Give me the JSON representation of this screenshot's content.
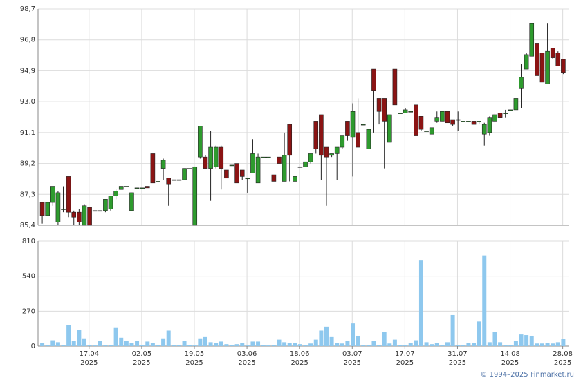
{
  "chart_data": [
    {
      "type": "candlestick",
      "up_color": "#2e9b2e",
      "down_color": "#8b1414",
      "ylim": [
        85.4,
        98.7
      ],
      "yticks": [
        {
          "value": 85.4,
          "label": "85,4"
        },
        {
          "value": 87.3,
          "label": "87,3"
        },
        {
          "value": 89.2,
          "label": "89,2"
        },
        {
          "value": 91.1,
          "label": "91,1"
        },
        {
          "value": 93.0,
          "label": "93,0"
        },
        {
          "value": 94.9,
          "label": "94,9"
        },
        {
          "value": 96.8,
          "label": "96,8"
        },
        {
          "value": 98.7,
          "label": "98,7"
        }
      ],
      "grid": true,
      "open": [
        86.8,
        86.0,
        86.8,
        85.6,
        86.4,
        88.4,
        86.2,
        86.2,
        85.4,
        86.5,
        86.3,
        86.3,
        86.3,
        86.4,
        87.2,
        87.6,
        87.8,
        86.3,
        87.7,
        87.7,
        87.8,
        89.8,
        88.1,
        88.9,
        88.3,
        88.2,
        88.2,
        88.2,
        88.9,
        85.4,
        89.6,
        89.6,
        88.9,
        89.0,
        90.2,
        88.8,
        89.1,
        89.2,
        88.8,
        88.3,
        88.6,
        88.0,
        89.6,
        89.6,
        88.5,
        89.6,
        88.1,
        91.6,
        88.1,
        89.0,
        89.0,
        89.3,
        91.8,
        92.2,
        90.2,
        89.7,
        89.8,
        90.2,
        91.8,
        90.8,
        91.1,
        91.6,
        90.1,
        95.0,
        93.2,
        93.2,
        90.5,
        95.0,
        92.3,
        92.3,
        92.4,
        92.8,
        92.1,
        91.2,
        91.0,
        91.8,
        91.8,
        92.4,
        91.9,
        91.9,
        91.8,
        91.8,
        91.8,
        91.8,
        91.0,
        91.1,
        91.8,
        92.3,
        92.3,
        92.5,
        92.5,
        93.8,
        95.0,
        95.8,
        96.6,
        96.0,
        94.1,
        96.3,
        96.0,
        95.6
      ],
      "high": [
        86.8,
        86.8,
        87.8,
        87.5,
        87.8,
        88.4,
        86.3,
        86.4,
        86.7,
        86.5,
        86.3,
        86.3,
        87.0,
        87.2,
        87.6,
        87.8,
        87.8,
        87.4,
        87.7,
        87.7,
        87.8,
        89.8,
        88.1,
        89.5,
        88.3,
        88.2,
        88.2,
        88.9,
        88.9,
        89.0,
        91.5,
        89.7,
        91.2,
        90.3,
        90.3,
        88.8,
        89.1,
        89.2,
        88.8,
        88.3,
        90.7,
        89.8,
        89.6,
        89.6,
        88.5,
        89.6,
        91.1,
        91.6,
        88.4,
        89.0,
        89.3,
        89.8,
        91.8,
        92.2,
        90.2,
        89.8,
        90.2,
        90.9,
        91.8,
        92.9,
        93.2,
        91.6,
        91.3,
        95.0,
        93.2,
        93.2,
        92.2,
        95.0,
        92.3,
        92.6,
        92.4,
        92.8,
        92.1,
        91.2,
        91.4,
        92.4,
        92.4,
        92.4,
        91.9,
        92.4,
        91.8,
        91.8,
        91.8,
        91.8,
        91.7,
        92.1,
        92.3,
        92.3,
        92.5,
        92.5,
        93.2,
        95.3,
        96.0,
        97.8,
        96.6,
        96.0,
        97.8,
        96.3,
        96.1,
        95.6
      ],
      "low": [
        85.5,
        86.0,
        86.6,
        85.4,
        86.2,
        85.9,
        85.4,
        85.4,
        85.4,
        85.4,
        86.3,
        86.3,
        86.2,
        86.3,
        87.0,
        87.6,
        87.8,
        86.3,
        87.7,
        87.7,
        87.7,
        88.0,
        88.1,
        88.2,
        86.6,
        88.2,
        88.2,
        88.2,
        88.9,
        85.4,
        89.5,
        88.9,
        86.9,
        88.9,
        87.6,
        88.3,
        89.1,
        88.0,
        88.2,
        87.4,
        88.6,
        88.0,
        89.6,
        89.6,
        88.1,
        89.2,
        88.1,
        88.1,
        88.1,
        89.0,
        89.0,
        89.2,
        89.8,
        88.2,
        86.6,
        89.6,
        88.2,
        90.1,
        90.6,
        88.4,
        90.2,
        91.6,
        90.1,
        91.1,
        91.6,
        88.9,
        90.5,
        92.8,
        92.3,
        92.3,
        92.4,
        90.9,
        91.2,
        91.2,
        91.0,
        91.7,
        91.8,
        91.7,
        91.5,
        91.2,
        91.8,
        91.8,
        91.6,
        91.6,
        90.3,
        90.9,
        91.7,
        92.0,
        92.0,
        92.5,
        92.5,
        92.6,
        95.0,
        95.8,
        94.6,
        94.2,
        94.1,
        95.6,
        95.2,
        94.7
      ],
      "close": [
        86.0,
        86.8,
        87.8,
        87.4,
        86.4,
        86.2,
        85.9,
        85.6,
        86.6,
        85.4,
        86.3,
        86.3,
        87.0,
        87.2,
        87.5,
        87.8,
        87.8,
        87.4,
        87.7,
        87.7,
        87.7,
        88.0,
        88.1,
        89.4,
        87.9,
        88.2,
        88.2,
        88.9,
        88.9,
        89.0,
        91.5,
        88.9,
        90.2,
        90.2,
        88.9,
        88.3,
        89.1,
        88.0,
        88.4,
        88.3,
        89.8,
        89.6,
        89.6,
        89.6,
        88.1,
        89.2,
        89.7,
        89.7,
        88.4,
        89.0,
        89.3,
        89.8,
        90.1,
        89.7,
        89.6,
        89.8,
        90.2,
        90.9,
        90.9,
        92.4,
        90.2,
        91.6,
        91.3,
        93.7,
        92.4,
        91.8,
        92.2,
        92.8,
        92.3,
        92.5,
        92.4,
        90.9,
        91.3,
        91.2,
        91.4,
        92.0,
        92.4,
        91.7,
        91.6,
        91.9,
        91.8,
        91.8,
        91.6,
        91.8,
        91.6,
        92.0,
        92.2,
        92.0,
        92.3,
        92.5,
        93.2,
        94.5,
        95.9,
        97.8,
        94.6,
        94.2,
        96.1,
        95.7,
        95.2,
        94.8
      ]
    },
    {
      "type": "bar",
      "color": "#8ec8ee",
      "values": [
        25,
        10,
        45,
        30,
        10,
        165,
        40,
        125,
        60,
        10,
        5,
        40,
        10,
        10,
        140,
        65,
        40,
        25,
        40,
        10,
        35,
        25,
        10,
        60,
        120,
        10,
        10,
        40,
        10,
        5,
        60,
        70,
        30,
        25,
        35,
        15,
        10,
        15,
        25,
        5,
        35,
        35,
        10,
        5,
        10,
        50,
        30,
        25,
        25,
        15,
        10,
        20,
        50,
        120,
        150,
        70,
        25,
        20,
        40,
        175,
        80,
        10,
        10,
        40,
        10,
        110,
        20,
        50,
        10,
        10,
        25,
        45,
        660,
        30,
        15,
        25,
        10,
        30,
        240,
        10,
        10,
        25,
        25,
        190,
        700,
        30,
        110,
        30,
        10,
        10,
        40,
        90,
        85,
        80,
        20,
        20,
        25,
        20,
        30,
        55
      ],
      "ylim": [
        0,
        810
      ],
      "yticks": [
        0,
        270,
        540,
        810
      ],
      "xlim": [
        -0.8,
        100
      ],
      "xticks": [
        {
          "value": 8.9,
          "label": "17.04",
          "sublabel": "2025"
        },
        {
          "value": 18.9,
          "label": "02.05",
          "sublabel": "2025"
        },
        {
          "value": 28.9,
          "label": "19.05",
          "sublabel": "2025"
        },
        {
          "value": 38.9,
          "label": "03.06",
          "sublabel": "2025"
        },
        {
          "value": 48.9,
          "label": "18.06",
          "sublabel": "2025"
        },
        {
          "value": 58.9,
          "label": "03.07",
          "sublabel": "2025"
        },
        {
          "value": 68.9,
          "label": "17.07",
          "sublabel": "2025"
        },
        {
          "value": 78.9,
          "label": "31.07",
          "sublabel": "2025"
        },
        {
          "value": 88.9,
          "label": "14.08",
          "sublabel": "2025"
        },
        {
          "value": 98.9,
          "label": "28.08",
          "sublabel": "2025"
        }
      ],
      "grid": true
    }
  ],
  "footer": "© 1994–2025 Finmarket.ru"
}
